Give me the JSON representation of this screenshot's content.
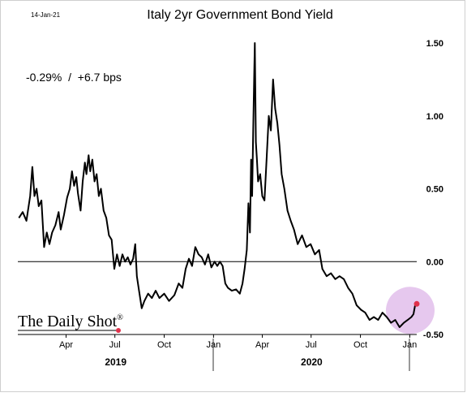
{
  "header": {
    "date": "14-Jan-21",
    "title": "Italy 2yr Government Bond Yield"
  },
  "annotation": {
    "change_text": "-0.29%  /  +6.7 bps"
  },
  "watermark": {
    "text": "The Daily Shot",
    "mark": "®"
  },
  "colors": {
    "line": "#000000",
    "highlight": "#e6c8ee",
    "marker": "#e0314b",
    "zero_line": "#000000"
  },
  "chart_data": {
    "type": "line",
    "title": "Italy 2yr Government Bond Yield",
    "xlabel": "",
    "ylabel": "",
    "ylim": [
      -0.5,
      1.5
    ],
    "yticks": [
      1.5,
      1.0,
      0.5,
      0.0,
      -0.5
    ],
    "ytick_labels": [
      "1.50",
      "1.00",
      "0.50",
      "0.00",
      "-0.50"
    ],
    "y_axis_side": "right",
    "grid": false,
    "legend": "none",
    "x_ticks": [
      {
        "date": "2019-04-01",
        "label": "Apr"
      },
      {
        "date": "2019-07-01",
        "label": "Jul"
      },
      {
        "date": "2019-10-01",
        "label": "Oct"
      },
      {
        "date": "2020-01-01",
        "label": "Jan"
      },
      {
        "date": "2020-04-01",
        "label": "Apr"
      },
      {
        "date": "2020-07-01",
        "label": "Jul"
      },
      {
        "date": "2020-10-01",
        "label": "Oct"
      },
      {
        "date": "2021-01-01",
        "label": "Jan"
      }
    ],
    "year_labels": [
      {
        "label": "2019",
        "from": "2019-01-01",
        "to": "2020-01-01"
      },
      {
        "label": "2020",
        "from": "2020-01-01",
        "to": "2021-01-01"
      }
    ],
    "series": [
      {
        "values": [
          [
            "2019-01-03",
            0.3
          ],
          [
            "2019-01-10",
            0.34
          ],
          [
            "2019-01-17",
            0.28
          ],
          [
            "2019-01-24",
            0.45
          ],
          [
            "2019-01-28",
            0.65
          ],
          [
            "2019-02-01",
            0.45
          ],
          [
            "2019-02-05",
            0.5
          ],
          [
            "2019-02-09",
            0.38
          ],
          [
            "2019-02-14",
            0.42
          ],
          [
            "2019-02-19",
            0.1
          ],
          [
            "2019-02-24",
            0.2
          ],
          [
            "2019-03-01",
            0.12
          ],
          [
            "2019-03-06",
            0.2
          ],
          [
            "2019-03-12",
            0.25
          ],
          [
            "2019-03-18",
            0.34
          ],
          [
            "2019-03-22",
            0.22
          ],
          [
            "2019-03-28",
            0.32
          ],
          [
            "2019-04-03",
            0.44
          ],
          [
            "2019-04-08",
            0.5
          ],
          [
            "2019-04-12",
            0.62
          ],
          [
            "2019-04-16",
            0.52
          ],
          [
            "2019-04-20",
            0.58
          ],
          [
            "2019-04-23",
            0.47
          ],
          [
            "2019-04-28",
            0.35
          ],
          [
            "2019-05-02",
            0.55
          ],
          [
            "2019-05-06",
            0.68
          ],
          [
            "2019-05-09",
            0.6
          ],
          [
            "2019-05-13",
            0.73
          ],
          [
            "2019-05-16",
            0.62
          ],
          [
            "2019-05-20",
            0.7
          ],
          [
            "2019-05-24",
            0.55
          ],
          [
            "2019-05-28",
            0.6
          ],
          [
            "2019-06-01",
            0.45
          ],
          [
            "2019-06-05",
            0.5
          ],
          [
            "2019-06-10",
            0.35
          ],
          [
            "2019-06-15",
            0.3
          ],
          [
            "2019-06-20",
            0.18
          ],
          [
            "2019-06-25",
            0.15
          ],
          [
            "2019-06-30",
            -0.05
          ],
          [
            "2019-07-05",
            0.05
          ],
          [
            "2019-07-10",
            -0.03
          ],
          [
            "2019-07-15",
            0.05
          ],
          [
            "2019-07-20",
            0.0
          ],
          [
            "2019-07-25",
            0.03
          ],
          [
            "2019-07-30",
            -0.02
          ],
          [
            "2019-08-04",
            0.02
          ],
          [
            "2019-08-08",
            0.12
          ],
          [
            "2019-08-11",
            -0.1
          ],
          [
            "2019-08-15",
            -0.2
          ],
          [
            "2019-08-20",
            -0.32
          ],
          [
            "2019-08-25",
            -0.27
          ],
          [
            "2019-09-01",
            -0.22
          ],
          [
            "2019-09-08",
            -0.25
          ],
          [
            "2019-09-15",
            -0.2
          ],
          [
            "2019-09-22",
            -0.25
          ],
          [
            "2019-10-01",
            -0.22
          ],
          [
            "2019-10-10",
            -0.27
          ],
          [
            "2019-10-20",
            -0.23
          ],
          [
            "2019-10-28",
            -0.15
          ],
          [
            "2019-11-04",
            -0.18
          ],
          [
            "2019-11-10",
            -0.05
          ],
          [
            "2019-11-16",
            0.02
          ],
          [
            "2019-11-22",
            -0.03
          ],
          [
            "2019-11-28",
            0.1
          ],
          [
            "2019-12-04",
            0.05
          ],
          [
            "2019-12-10",
            0.03
          ],
          [
            "2019-12-16",
            -0.02
          ],
          [
            "2019-12-22",
            0.05
          ],
          [
            "2019-12-28",
            -0.04
          ],
          [
            "2020-01-03",
            0.0
          ],
          [
            "2020-01-08",
            -0.03
          ],
          [
            "2020-01-13",
            0.0
          ],
          [
            "2020-01-18",
            -0.03
          ],
          [
            "2020-01-23",
            -0.15
          ],
          [
            "2020-01-28",
            -0.18
          ],
          [
            "2020-02-04",
            -0.2
          ],
          [
            "2020-02-12",
            -0.19
          ],
          [
            "2020-02-19",
            -0.22
          ],
          [
            "2020-02-24",
            -0.15
          ],
          [
            "2020-02-28",
            -0.05
          ],
          [
            "2020-03-03",
            0.08
          ],
          [
            "2020-03-06",
            0.4
          ],
          [
            "2020-03-09",
            0.2
          ],
          [
            "2020-03-11",
            0.7
          ],
          [
            "2020-03-13",
            0.45
          ],
          [
            "2020-03-15",
            0.9
          ],
          [
            "2020-03-17",
            1.3
          ],
          [
            "2020-03-18",
            1.5
          ],
          [
            "2020-03-20",
            0.82
          ],
          [
            "2020-03-22",
            0.7
          ],
          [
            "2020-03-24",
            0.55
          ],
          [
            "2020-03-28",
            0.6
          ],
          [
            "2020-04-01",
            0.45
          ],
          [
            "2020-04-05",
            0.42
          ],
          [
            "2020-04-09",
            0.7
          ],
          [
            "2020-04-13",
            1.0
          ],
          [
            "2020-04-17",
            0.9
          ],
          [
            "2020-04-21",
            1.25
          ],
          [
            "2020-04-25",
            1.05
          ],
          [
            "2020-04-29",
            0.95
          ],
          [
            "2020-05-03",
            0.8
          ],
          [
            "2020-05-07",
            0.6
          ],
          [
            "2020-05-12",
            0.5
          ],
          [
            "2020-05-18",
            0.35
          ],
          [
            "2020-05-24",
            0.28
          ],
          [
            "2020-05-30",
            0.22
          ],
          [
            "2020-06-06",
            0.12
          ],
          [
            "2020-06-14",
            0.18
          ],
          [
            "2020-06-22",
            0.1
          ],
          [
            "2020-06-30",
            0.12
          ],
          [
            "2020-07-08",
            0.05
          ],
          [
            "2020-07-16",
            0.08
          ],
          [
            "2020-07-22",
            -0.05
          ],
          [
            "2020-07-30",
            -0.1
          ],
          [
            "2020-08-07",
            -0.08
          ],
          [
            "2020-08-15",
            -0.12
          ],
          [
            "2020-08-23",
            -0.1
          ],
          [
            "2020-08-31",
            -0.12
          ],
          [
            "2020-09-08",
            -0.18
          ],
          [
            "2020-09-16",
            -0.22
          ],
          [
            "2020-09-24",
            -0.3
          ],
          [
            "2020-10-02",
            -0.33
          ],
          [
            "2020-10-10",
            -0.35
          ],
          [
            "2020-10-18",
            -0.4
          ],
          [
            "2020-10-26",
            -0.38
          ],
          [
            "2020-11-03",
            -0.4
          ],
          [
            "2020-11-11",
            -0.35
          ],
          [
            "2020-11-19",
            -0.38
          ],
          [
            "2020-11-27",
            -0.42
          ],
          [
            "2020-12-05",
            -0.4
          ],
          [
            "2020-12-13",
            -0.45
          ],
          [
            "2020-12-21",
            -0.42
          ],
          [
            "2020-12-28",
            -0.4
          ],
          [
            "2021-01-04",
            -0.38
          ],
          [
            "2021-01-08",
            -0.36
          ],
          [
            "2021-01-11",
            -0.3
          ],
          [
            "2021-01-14",
            -0.29
          ]
        ]
      }
    ],
    "last_point": {
      "date": "2021-01-14",
      "value": -0.29
    }
  }
}
